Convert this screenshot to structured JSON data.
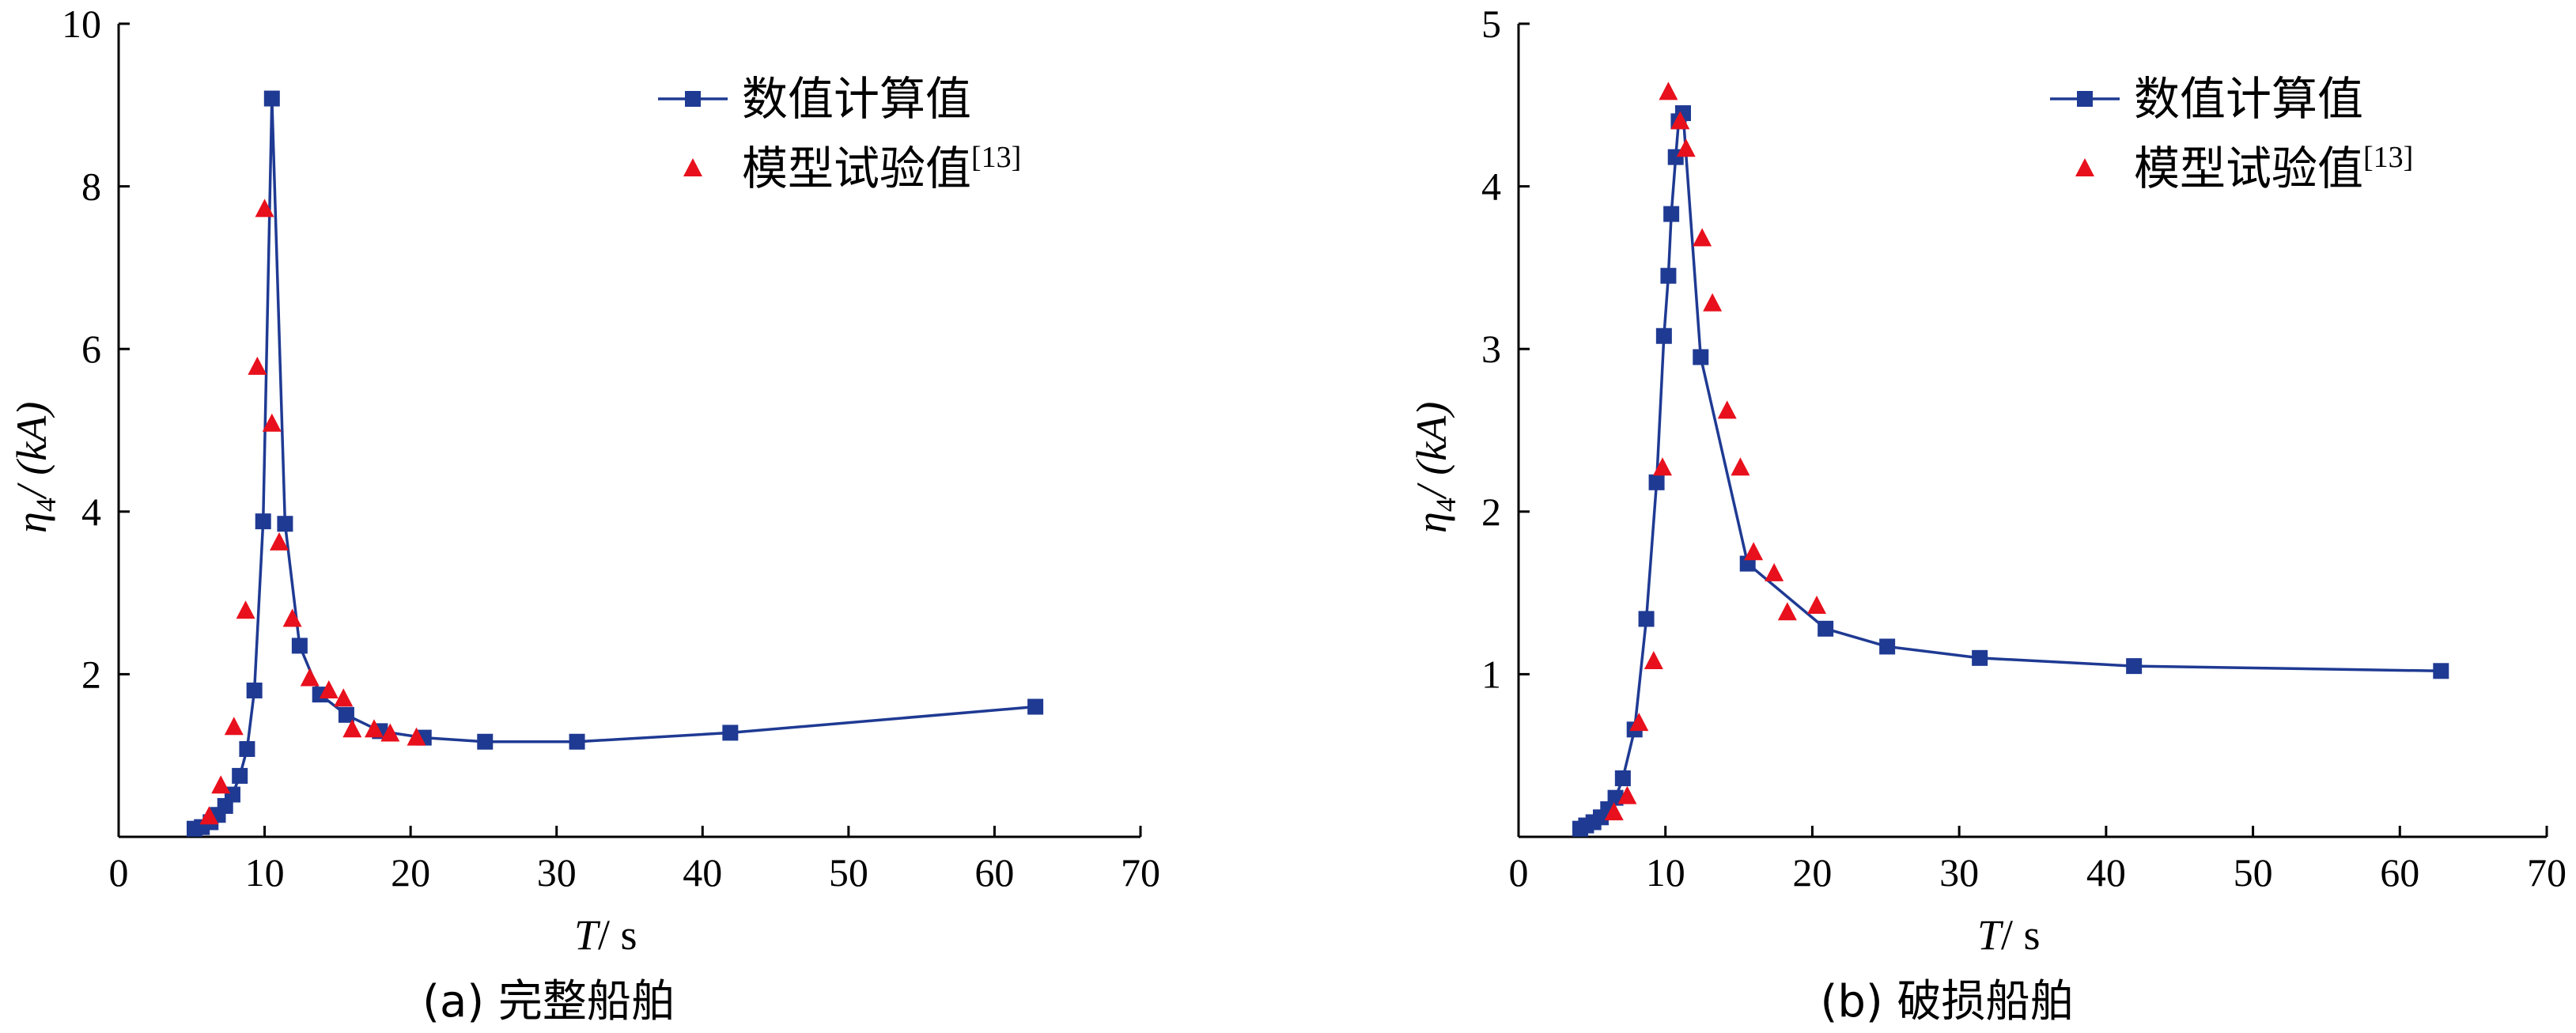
{
  "chart_data": [
    {
      "type": "line",
      "caption": "(a)  完整船舶",
      "xlabel_var": "T",
      "xlabel_unit": "/ s",
      "ylabel_var": "η",
      "ylabel_sub": "4",
      "ylabel_rest": "/ (kA)",
      "xlim": [
        0,
        70
      ],
      "ylim": [
        0,
        10
      ],
      "xticks": [
        0,
        10,
        20,
        30,
        40,
        50,
        60,
        70
      ],
      "yticks": [
        2,
        4,
        6,
        8,
        10
      ],
      "legend_position": "top-right",
      "series": [
        {
          "name": "数值计算值",
          "marker": "square",
          "color": "#1f3a93",
          "line": true,
          "x": [
            5.2,
            5.7,
            6.3,
            6.8,
            7.3,
            7.8,
            8.3,
            8.8,
            9.3,
            9.9,
            10.5,
            11.4,
            12.4,
            13.8,
            15.6,
            17.9,
            20.9,
            25.1,
            31.4,
            41.9,
            62.8
          ],
          "y": [
            0.1,
            0.12,
            0.18,
            0.27,
            0.38,
            0.52,
            0.75,
            1.08,
            1.8,
            3.88,
            9.08,
            3.85,
            2.35,
            1.75,
            1.5,
            1.3,
            1.22,
            1.17,
            1.17,
            1.28,
            1.6
          ]
        },
        {
          "name": "模型试验值[13]",
          "legend_sup": "[13]",
          "marker": "triangle",
          "color": "#e8101c",
          "line": false,
          "x": [
            6.2,
            7.0,
            7.9,
            8.7,
            9.5,
            10.0,
            10.5,
            11.0,
            11.9,
            13.1,
            14.4,
            15.4,
            16.0,
            17.5,
            18.6,
            20.4
          ],
          "y": [
            0.25,
            0.63,
            1.35,
            2.78,
            5.78,
            7.72,
            5.08,
            3.62,
            2.68,
            1.95,
            1.8,
            1.7,
            1.32,
            1.32,
            1.27,
            1.22
          ]
        }
      ]
    },
    {
      "type": "line",
      "caption": "(b)  破损船舶",
      "xlabel_var": "T",
      "xlabel_unit": "/ s",
      "ylabel_var": "η",
      "ylabel_sub": "4",
      "ylabel_rest": "/ (kA)",
      "xlim": [
        0,
        70
      ],
      "ylim": [
        0,
        5
      ],
      "xticks": [
        0,
        10,
        20,
        30,
        40,
        50,
        60,
        70
      ],
      "yticks": [
        1,
        2,
        3,
        4,
        5
      ],
      "legend_position": "top-right",
      "series": [
        {
          "name": "数值计算值",
          "marker": "square",
          "color": "#1f3a93",
          "line": true,
          "x": [
            4.2,
            4.6,
            5.1,
            5.6,
            6.1,
            6.6,
            7.1,
            7.9,
            8.7,
            9.4,
            9.9,
            10.2,
            10.4,
            10.7,
            10.9,
            11.2,
            12.4,
            15.6,
            20.9,
            25.1,
            31.4,
            41.9,
            62.8
          ],
          "y": [
            0.05,
            0.07,
            0.09,
            0.12,
            0.17,
            0.24,
            0.36,
            0.66,
            1.34,
            2.18,
            3.08,
            3.45,
            3.83,
            4.18,
            4.4,
            4.45,
            2.95,
            1.68,
            1.28,
            1.17,
            1.1,
            1.05,
            1.02
          ]
        },
        {
          "name": "模型试验值[13]",
          "legend_sup": "[13]",
          "marker": "triangle",
          "color": "#e8101c",
          "line": false,
          "x": [
            6.5,
            7.4,
            8.2,
            9.2,
            9.8,
            10.2,
            11.0,
            11.4,
            12.5,
            13.2,
            14.2,
            15.1,
            16.0,
            17.4,
            18.3,
            20.3
          ],
          "y": [
            0.15,
            0.25,
            0.7,
            1.08,
            2.27,
            4.58,
            4.4,
            4.23,
            3.68,
            3.28,
            2.62,
            2.27,
            1.75,
            1.62,
            1.38,
            1.42
          ]
        }
      ]
    }
  ]
}
